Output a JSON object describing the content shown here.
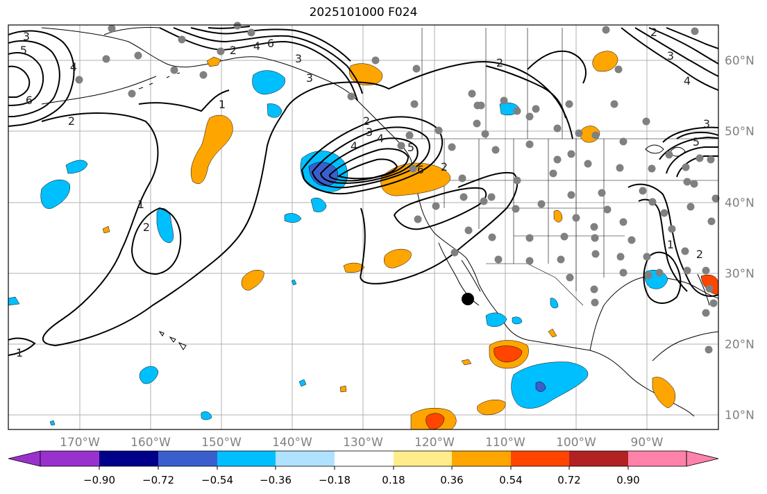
{
  "title": "2025101000 F024",
  "map": {
    "lon_ticks": [
      "170°W",
      "160°W",
      "150°W",
      "140°W",
      "130°W",
      "120°W",
      "110°W",
      "100°W",
      "90°W"
    ],
    "lat_ticks": [
      "60°N",
      "50°N",
      "40°N",
      "30°N",
      "20°N",
      "10°N"
    ],
    "contour_labels": [
      "3",
      "5",
      "4",
      "6",
      "2",
      "1",
      "2",
      "6",
      "4",
      "3",
      "2",
      "3",
      "4",
      "2",
      "3",
      "4",
      "5",
      "6",
      "2",
      "1",
      "1",
      "2",
      "3",
      "4",
      "5",
      "3",
      "2",
      "2",
      "1"
    ]
  },
  "colorbar": {
    "labels": [
      "−0.90",
      "−0.72",
      "−0.54",
      "−0.36",
      "−0.18",
      "0.18",
      "0.36",
      "0.54",
      "0.72",
      "0.90"
    ],
    "colors": [
      "#9932cc",
      "#00008b",
      "#3a5fcd",
      "#00bfff",
      "#b0e2ff",
      "#ffffff",
      "#ffec8b",
      "#ffa500",
      "#ff4500",
      "#b22222",
      "#ff82ab"
    ]
  },
  "palette": {
    "land_line": "#000000",
    "grid": "#b0b0b0",
    "station": "#808080",
    "marker": "#000000"
  }
}
